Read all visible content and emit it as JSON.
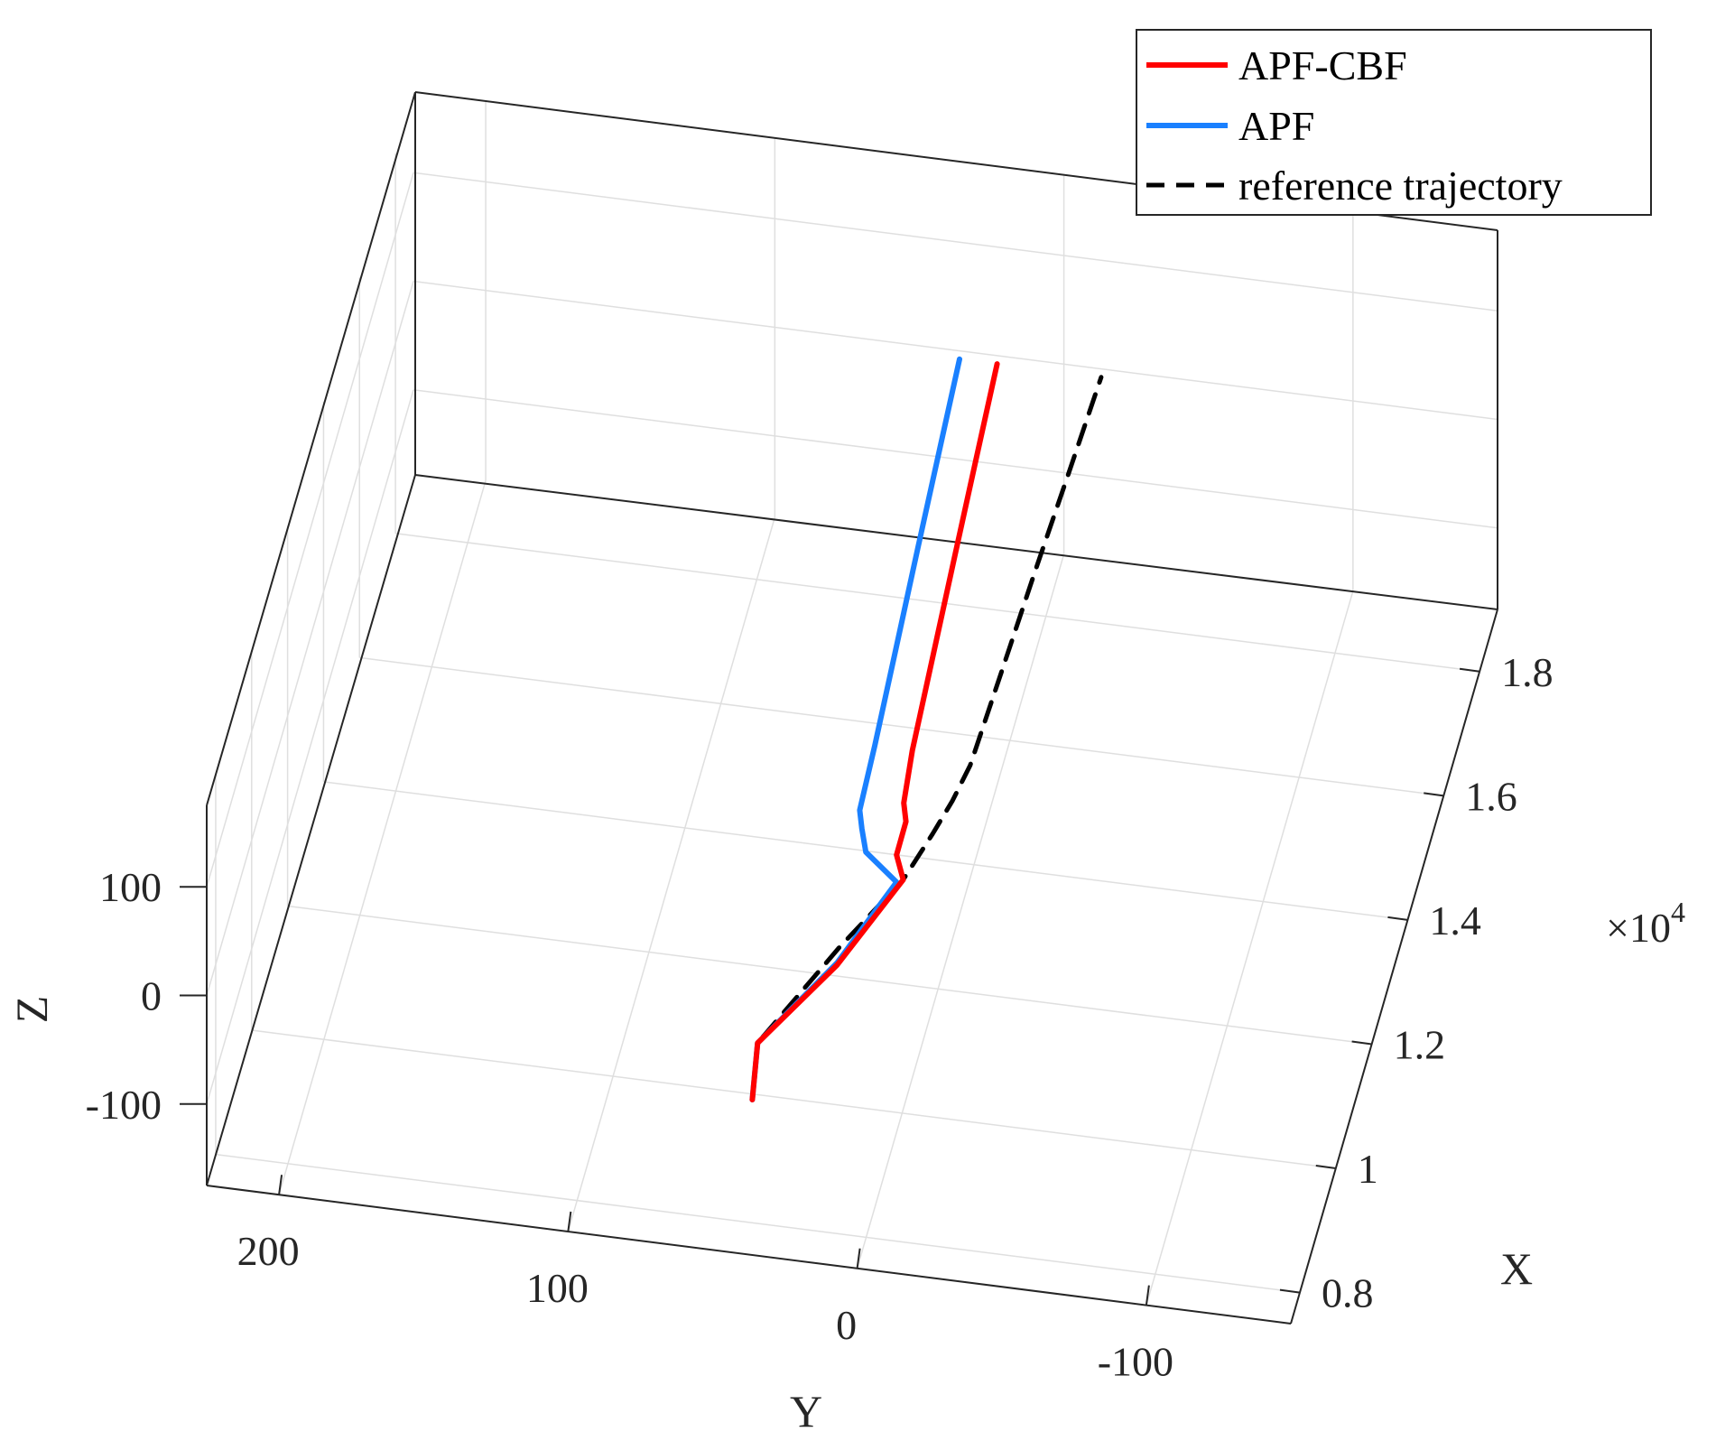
{
  "chart_data": {
    "type": "line3d",
    "title": "",
    "xlabel": "X",
    "ylabel": "Y",
    "zlabel": "Z",
    "x_exponent_label": "×10",
    "x_exponent_power": "4",
    "x_ticks": [
      "0.8",
      "1",
      "1.2",
      "1.4",
      "1.6",
      "1.8"
    ],
    "x_tick_values": [
      8000,
      10000,
      12000,
      14000,
      16000,
      18000
    ],
    "y_ticks": [
      "200",
      "100",
      "0",
      "-100"
    ],
    "y_tick_values": [
      200,
      100,
      0,
      -100
    ],
    "z_ticks": [
      "100",
      "0",
      "-100"
    ],
    "z_tick_values": [
      100,
      0,
      -100
    ],
    "xlim": [
      7500,
      19000
    ],
    "ylim": [
      -150,
      225
    ],
    "zlim": [
      -175,
      175
    ],
    "grid": true,
    "legend_position": "top-right",
    "legend": [
      {
        "label": "APF-CBF",
        "color": "#ff0000",
        "style": "solid"
      },
      {
        "label": "APF",
        "color": "#1a80ff",
        "style": "solid"
      },
      {
        "label": "reference trajectory",
        "color": "#000000",
        "style": "dashed"
      }
    ],
    "series": [
      {
        "name": "APF-CBF",
        "color": "#ff0000",
        "points": [
          [
            8900,
            45,
            -115
          ],
          [
            9200,
            45,
            -80
          ],
          [
            10400,
            25,
            -70
          ],
          [
            11350,
            8,
            -40
          ],
          [
            11300,
            10,
            -15
          ],
          [
            11500,
            8,
            5
          ],
          [
            11700,
            10,
            10
          ],
          [
            12500,
            12,
            12
          ],
          [
            14000,
            14,
            15
          ],
          [
            15500,
            16,
            18
          ],
          [
            17000,
            18,
            20
          ],
          [
            18500,
            20,
            22
          ]
        ]
      },
      {
        "name": "APF",
        "color": "#1a80ff",
        "points": [
          [
            8900,
            45,
            -115
          ],
          [
            9200,
            45,
            -80
          ],
          [
            10400,
            25,
            -68
          ],
          [
            11300,
            10,
            -40
          ],
          [
            11200,
            20,
            -10
          ],
          [
            11300,
            22,
            5
          ],
          [
            11500,
            24,
            10
          ],
          [
            12500,
            25,
            12
          ],
          [
            14000,
            27,
            15
          ],
          [
            15500,
            29,
            18
          ],
          [
            17000,
            31,
            20
          ],
          [
            18500,
            33,
            22
          ]
        ]
      },
      {
        "name": "reference trajectory",
        "color": "#000000",
        "points": [
          [
            8900,
            45,
            -115
          ],
          [
            9200,
            45,
            -80
          ],
          [
            10500,
            25,
            -60
          ],
          [
            11350,
            8,
            -40
          ],
          [
            11700,
            0,
            -15
          ],
          [
            12000,
            -5,
            0
          ],
          [
            12500,
            -8,
            5
          ],
          [
            14000,
            -10,
            10
          ],
          [
            15500,
            -12,
            15
          ],
          [
            17000,
            -14,
            18
          ],
          [
            18500,
            -16,
            22
          ]
        ]
      }
    ]
  }
}
